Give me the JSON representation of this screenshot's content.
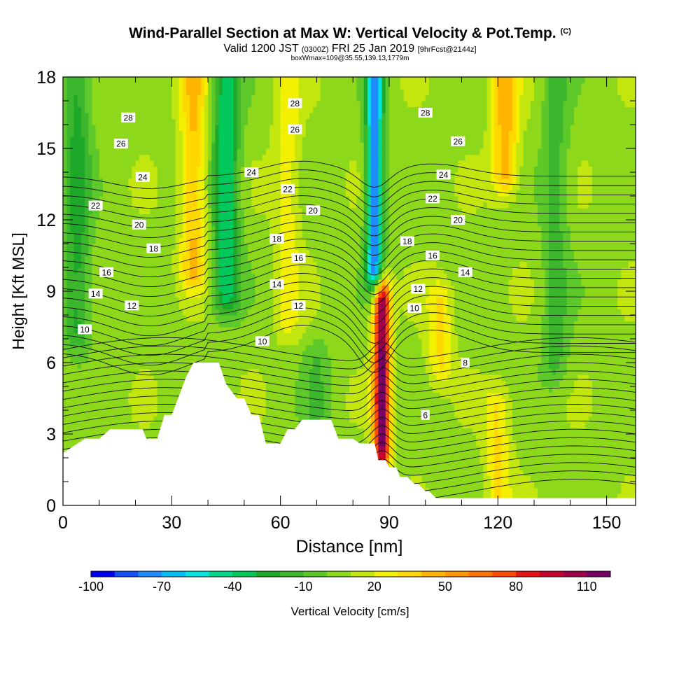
{
  "title": {
    "main": "Wind-Parallel Section at Max W: Vertical Velocity & Pot.Temp.",
    "copyright": "(C)",
    "valid_prefix": "Valid 1200 JST",
    "valid_utc": "(0300Z)",
    "valid_date": "FRI 25 Jan 2019",
    "forecast": "[9hrFcst@2144z]",
    "box_info": "boxWmax=109@35.55,139.13,1779m"
  },
  "chart_data": {
    "type": "heatmap",
    "xlabel": "Distance [nm]",
    "ylabel": "Height [Kft MSL]",
    "xlim": [
      0,
      158
    ],
    "ylim": [
      0,
      18
    ],
    "x_ticks": [
      0,
      30,
      60,
      90,
      120,
      150
    ],
    "y_ticks": [
      0,
      3,
      6,
      9,
      12,
      15,
      18
    ],
    "grid": false,
    "colorbar": {
      "label": "Vertical Velocity [cm/s]",
      "placement": "bottom",
      "tick_labels": [
        -100,
        -70,
        -40,
        -10,
        20,
        50,
        80,
        110
      ],
      "levels": [
        -100,
        -90,
        -80,
        -70,
        -60,
        -50,
        -40,
        -30,
        -20,
        -10,
        0,
        10,
        20,
        30,
        40,
        50,
        60,
        70,
        80,
        90,
        100,
        110,
        120
      ],
      "colors": [
        "#0000f0",
        "#1450f5",
        "#1e8cff",
        "#00bff5",
        "#00e6dc",
        "#00d88a",
        "#00c85a",
        "#1ea82a",
        "#3cb62c",
        "#5cc82a",
        "#8ed81c",
        "#c2e60e",
        "#f2f000",
        "#ffd800",
        "#ffb400",
        "#ff9600",
        "#ff7400",
        "#ff4c00",
        "#e61414",
        "#c8002e",
        "#a0004a",
        "#780064"
      ]
    },
    "velocity_features": [
      {
        "x": 4,
        "y_range": [
          7.5,
          18
        ],
        "w_cm_s": -30
      },
      {
        "x": 36,
        "y_range": [
          10,
          18
        ],
        "w_cm_s": 35
      },
      {
        "x": 45,
        "y_range": [
          9,
          18
        ],
        "w_cm_s": -45
      },
      {
        "x": 62,
        "y_range": [
          8,
          18
        ],
        "w_cm_s": 20
      },
      {
        "x": 70,
        "y_range": [
          3,
          6
        ],
        "w_cm_s": -15
      },
      {
        "x": 86,
        "y_range": [
          10,
          18
        ],
        "w_cm_s": -85
      },
      {
        "x": 88,
        "y_range": [
          2.5,
          8.5
        ],
        "w_cm_s": 109
      },
      {
        "x": 104,
        "y_range": [
          6,
          8.5
        ],
        "w_cm_s": 25
      },
      {
        "x": 120,
        "y_range": [
          0.5,
          4
        ],
        "w_cm_s": 25
      },
      {
        "x": 122,
        "y_range": [
          14,
          18
        ],
        "w_cm_s": 40
      },
      {
        "x": 136,
        "y_range": [
          6,
          18
        ],
        "w_cm_s": -20
      }
    ],
    "terrain": {
      "x": [
        0,
        3,
        6,
        7,
        10,
        13,
        22,
        23,
        26,
        28,
        30,
        32,
        34,
        36,
        40,
        42,
        43,
        45,
        48,
        50,
        52,
        54,
        56,
        58,
        60,
        62,
        64,
        66,
        68,
        70,
        72,
        74,
        76,
        78,
        80,
        82,
        84,
        86,
        87,
        88,
        89,
        90,
        92,
        93,
        95,
        97,
        98,
        100,
        101,
        103,
        106,
        158
      ],
      "height_kft": [
        2.2,
        2.5,
        2.8,
        2.8,
        2.8,
        3.2,
        3.2,
        2.8,
        2.8,
        3.8,
        3.8,
        4.6,
        5.4,
        6.0,
        6.0,
        6.0,
        6.0,
        5.1,
        4.5,
        4.5,
        3.8,
        3.8,
        2.6,
        2.6,
        2.6,
        3.2,
        3.2,
        3.6,
        3.6,
        3.6,
        3.6,
        3.6,
        2.8,
        2.8,
        2.8,
        2.6,
        2.6,
        2.6,
        1.9,
        1.9,
        1.9,
        1.6,
        1.6,
        1.2,
        1.2,
        0.9,
        0.9,
        0.6,
        0.6,
        0.3,
        0.3,
        0.3
      ]
    },
    "contours": {
      "label": "Pot.Temp.",
      "levels": [
        6,
        8,
        10,
        12,
        14,
        16,
        18,
        20,
        22,
        24,
        26,
        28
      ],
      "labels": [
        {
          "text": "10",
          "x": 6,
          "y": 7.4
        },
        {
          "text": "14",
          "x": 9,
          "y": 8.9
        },
        {
          "text": "16",
          "x": 12,
          "y": 9.8
        },
        {
          "text": "12",
          "x": 19,
          "y": 8.4
        },
        {
          "text": "18",
          "x": 25,
          "y": 10.8
        },
        {
          "text": "20",
          "x": 21,
          "y": 11.8
        },
        {
          "text": "22",
          "x": 9,
          "y": 12.6
        },
        {
          "text": "24",
          "x": 22,
          "y": 13.8
        },
        {
          "text": "26",
          "x": 16,
          "y": 15.2
        },
        {
          "text": "28",
          "x": 18,
          "y": 16.3
        },
        {
          "text": "10",
          "x": 55,
          "y": 6.9
        },
        {
          "text": "14",
          "x": 59,
          "y": 9.3
        },
        {
          "text": "18",
          "x": 59,
          "y": 11.2
        },
        {
          "text": "24",
          "x": 52,
          "y": 14.0
        },
        {
          "text": "22",
          "x": 62,
          "y": 13.3
        },
        {
          "text": "26",
          "x": 64,
          "y": 15.8
        },
        {
          "text": "28",
          "x": 64,
          "y": 16.9
        },
        {
          "text": "12",
          "x": 65,
          "y": 8.4
        },
        {
          "text": "16",
          "x": 65,
          "y": 10.4
        },
        {
          "text": "20",
          "x": 69,
          "y": 12.4
        },
        {
          "text": "28",
          "x": 100,
          "y": 16.5
        },
        {
          "text": "18",
          "x": 95,
          "y": 11.1
        },
        {
          "text": "12",
          "x": 98,
          "y": 9.1
        },
        {
          "text": "10",
          "x": 97,
          "y": 8.3
        },
        {
          "text": "16",
          "x": 102,
          "y": 10.5
        },
        {
          "text": "22",
          "x": 102,
          "y": 12.9
        },
        {
          "text": "24",
          "x": 105,
          "y": 13.9
        },
        {
          "text": "26",
          "x": 109,
          "y": 15.3
        },
        {
          "text": "20",
          "x": 109,
          "y": 12.0
        },
        {
          "text": "14",
          "x": 111,
          "y": 9.8
        },
        {
          "text": "8",
          "x": 111,
          "y": 6.0
        },
        {
          "text": "6",
          "x": 100,
          "y": 3.8
        }
      ]
    }
  }
}
